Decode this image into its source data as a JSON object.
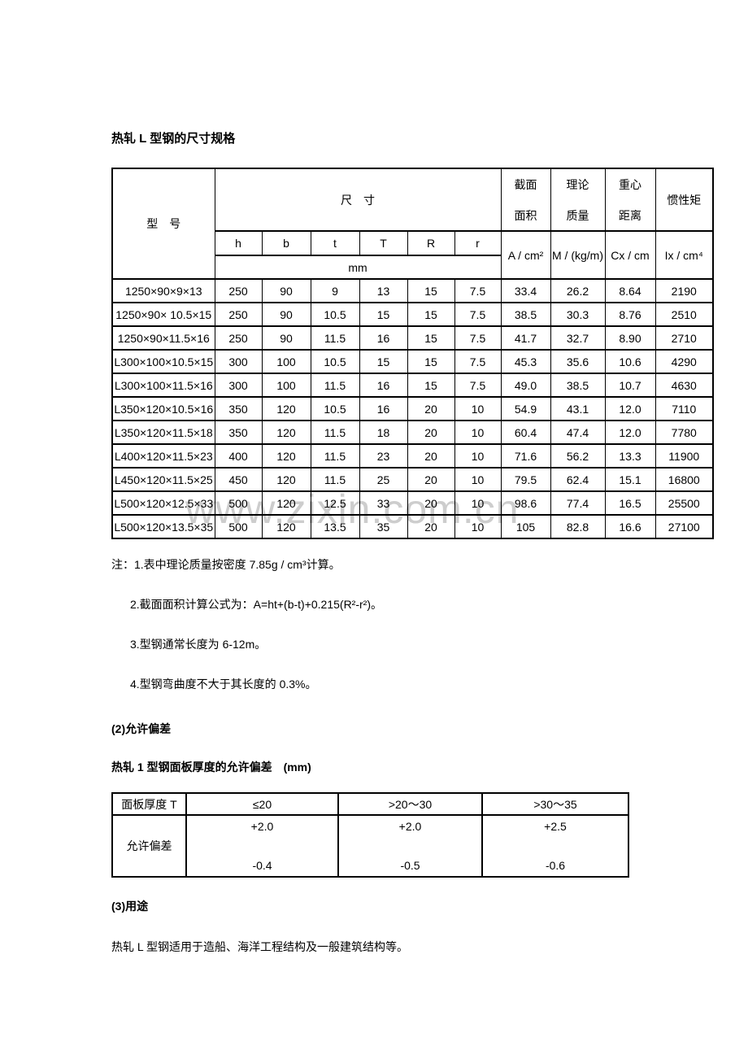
{
  "title": "热轧 L 型钢的尺寸规格",
  "watermark": "www.zixin.com.cn",
  "colors": {
    "background": "#ffffff",
    "text": "#000000",
    "border": "#000000",
    "watermark": "#cdcdcd"
  },
  "size_table": {
    "model_header": "型　号",
    "size_header": "尺　寸",
    "dim_columns": [
      "h",
      "b",
      "t",
      "T",
      "R",
      "r"
    ],
    "unit_row": "mm",
    "area_header": [
      "截面",
      "面积"
    ],
    "mass_header": [
      "理论",
      "质量"
    ],
    "centroid_header": [
      "重心",
      "距离"
    ],
    "inertia_header": "惯性矩",
    "area_unit": "A / cm²",
    "mass_unit": "M / (kg/m)",
    "centroid_unit": "Cx / cm",
    "inertia_unit": "Ix / cm⁴",
    "rows": [
      [
        "1250×90×9×13",
        "250",
        "90",
        "9",
        "13",
        "15",
        "7.5",
        "33.4",
        "26.2",
        "8.64",
        "2190"
      ],
      [
        "1250×90× 10.5×15",
        "250",
        "90",
        "10.5",
        "15",
        "15",
        "7.5",
        "38.5",
        "30.3",
        "8.76",
        "2510"
      ],
      [
        "1250×90×11.5×16",
        "250",
        "90",
        "11.5",
        "16",
        "15",
        "7.5",
        "41.7",
        "32.7",
        "8.90",
        "2710"
      ],
      [
        "L300×100×10.5×15",
        "300",
        "100",
        "10.5",
        "15",
        "15",
        "7.5",
        "45.3",
        "35.6",
        "10.6",
        "4290"
      ],
      [
        "L300×100×11.5×16",
        "300",
        "100",
        "11.5",
        "16",
        "15",
        "7.5",
        "49.0",
        "38.5",
        "10.7",
        "4630"
      ],
      [
        "L350×120×10.5×16",
        "350",
        "120",
        "10.5",
        "16",
        "20",
        "10",
        "54.9",
        "43.1",
        "12.0",
        "7110"
      ],
      [
        "L350×120×11.5×18",
        "350",
        "120",
        "11.5",
        "18",
        "20",
        "10",
        "60.4",
        "47.4",
        "12.0",
        "7780"
      ],
      [
        "L400×120×11.5×23",
        "400",
        "120",
        "11.5",
        "23",
        "20",
        "10",
        "71.6",
        "56.2",
        "13.3",
        "11900"
      ],
      [
        "L450×120×11.5×25",
        "450",
        "120",
        "11.5",
        "25",
        "20",
        "10",
        "79.5",
        "62.4",
        "15.1",
        "16800"
      ],
      [
        "L500×120×12.5×33",
        "500",
        "120",
        "12.5",
        "33",
        "20",
        "10",
        "98.6",
        "77.4",
        "16.5",
        "25500"
      ],
      [
        "L500×120×13.5×35",
        "500",
        "120",
        "13.5",
        "35",
        "20",
        "10",
        "105",
        "82.8",
        "16.6",
        "27100"
      ]
    ]
  },
  "notes": [
    "注：1.表中理论质量按密度 7.85g / cm³计算。",
    "2.截面面积计算公式为：A=ht+(b-t)+0.215(R²-r²)。",
    "3.型钢通常长度为 6-12m。",
    "4.型钢弯曲度不大于其长度的 0.3%。"
  ],
  "section2": {
    "heading": "(2)允许偏差",
    "table_title": "热轧 1 型钢面板厚度的允许偏差　(mm)"
  },
  "deviation_table": {
    "row_header": "面板厚度 T",
    "col_headers": [
      "≤20",
      ">20～30",
      ">30～35"
    ],
    "deviation_label": "允许偏差",
    "plus_values": [
      "+2.0",
      "+2.0",
      "+2.5"
    ],
    "minus_values": [
      "-0.4",
      "-0.5",
      "-0.6"
    ]
  },
  "section3": {
    "heading": "(3)用途",
    "text": "热轧 L 型钢适用于造船、海洋工程结构及一般建筑结构等。"
  }
}
